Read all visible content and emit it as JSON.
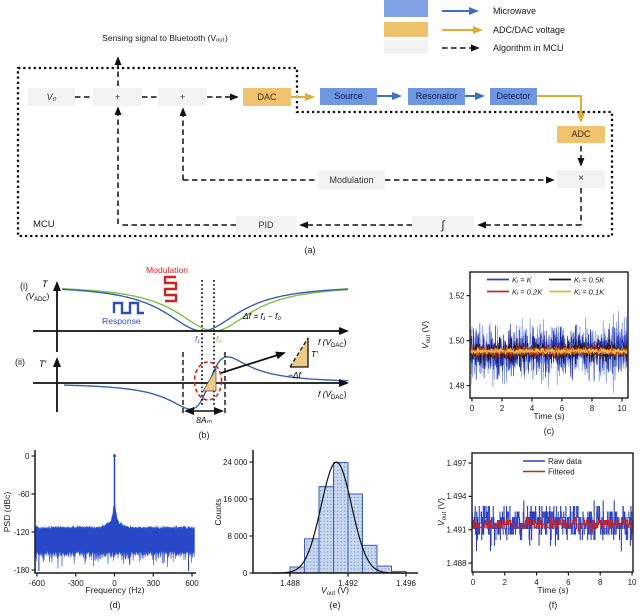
{
  "legend": {
    "items": [
      {
        "label": "Microwave",
        "swatch": "#7ea2e4",
        "arrow": "#3f6ec6",
        "dashed": false
      },
      {
        "label": "ADC/DAC voltage",
        "swatch": "#eec26d",
        "arrow": "#e2ab32",
        "dashed": false
      },
      {
        "label": "Algorithm in MCU",
        "swatch": "#f3f3f3",
        "arrow": "#111111",
        "dashed": true
      }
    ]
  },
  "panel_a": {
    "caption": "(a)",
    "sensing_label": "Sensing signal to Bluetooth (Vₒᵤₜ)",
    "mcu_label": "MCU",
    "blocks": {
      "v0": "V₀",
      "sum1": "+",
      "sum2": "+",
      "dac": "DAC",
      "source": "Source",
      "resonator": "Resonator",
      "detector": "Detector",
      "adc": "ADC",
      "modulation": "Modulation",
      "multiply": "×",
      "pid": "PID",
      "integrator": "∫"
    },
    "colors": {
      "mcu_block": "#f3f3f3",
      "microwave_block": "#6f96e1",
      "converter_block": "#efc36f",
      "microwave_arrow": "#3f6ec6",
      "voltage_arrow": "#e2ab32",
      "algorithm_line": "#111111"
    }
  },
  "panel_b": {
    "caption": "(b)",
    "roman_i": "(i)",
    "roman_ii": "(ii)",
    "t_label": "T",
    "t_prime_label": "T′",
    "vadc_parts": [
      "(V",
      "ADC",
      ")"
    ],
    "f_axis_parts": [
      "f (V",
      "DAC",
      ")"
    ],
    "modulation_label": "Modulation",
    "response_label": "Response",
    "delta_f_label": "Δf = f₁ − f₀",
    "f1_label": "f₁",
    "f0_label": "f₀",
    "triangle_t_label": "T′",
    "triangle_df_label": "−Δf",
    "eight_am_label": "8Aₘ",
    "colors": {
      "modulation": "#cc2420",
      "response": "#2a4db8",
      "f1_curve": "#3a5fae",
      "f0_curve": "#7cc142",
      "ellipse": "#d0251d",
      "triangle_fill": "#eccb86"
    }
  },
  "chart_data": [
    {
      "id": "c",
      "type": "line",
      "xlabel": "Time (s)",
      "ylabel_parts": [
        "V",
        "out",
        " (V)"
      ],
      "caption": "(c)",
      "xlim": [
        -0.13,
        10.4
      ],
      "ylim": [
        1.4745,
        1.5305
      ],
      "xticks": [
        0,
        2,
        4,
        6,
        8,
        10
      ],
      "yticks": [
        1.48,
        1.5,
        1.52
      ],
      "ytick_labels": [
        "1.48",
        "1.50",
        "1.52"
      ],
      "description": "Closed-loop output voltage noise vs time for four integral gains; all traces centered near 1.495 V",
      "series": [
        {
          "name": "Kᵢ = K",
          "legend_color": "#2b43b4",
          "mean": 1.4953,
          "layers": [
            {
              "color": "#6d86e0",
              "amp": 0.0115,
              "seed": 101
            },
            {
              "color": "#1c2ba2",
              "amp": 0.0085,
              "seed": 102
            }
          ]
        },
        {
          "name": "Kᵢ = 0.5K",
          "legend_color": "#1a1a1a",
          "mean": 1.4953,
          "layers": [
            {
              "color": "#151515",
              "amp": 0.0038,
              "seed": 103
            }
          ]
        },
        {
          "name": "Kᵢ = 0.2K",
          "legend_color": "#b03028",
          "mean": 1.4953,
          "layers": [
            {
              "color": "#a32417",
              "amp": 0.0026,
              "seed": 104
            },
            {
              "color": "#d8641c",
              "amp": 0.0017,
              "seed": 105
            }
          ]
        },
        {
          "name": "Kᵢ = 0.1K",
          "legend_color": "#e8b43c",
          "mean": 1.4953,
          "layers": [
            {
              "color": "#f0c24a",
              "amp": 0.0011,
              "seed": 106
            }
          ]
        }
      ]
    },
    {
      "id": "d",
      "type": "psd",
      "xlabel": "Frequency (Hz)",
      "ylabel": "PSD (dBc)",
      "caption": "(d)",
      "xlim": [
        -615,
        623
      ],
      "ylim": [
        -184.7,
        6.3
      ],
      "xticks": [
        -600,
        -300,
        0,
        300,
        600
      ],
      "xtick_labels": [
        "-600",
        "-300",
        "0",
        "300",
        "600"
      ],
      "yticks": [
        0,
        -60,
        -120,
        -180
      ],
      "ytick_labels": [
        "0",
        "-60",
        "-120",
        "-180"
      ],
      "description": "Power spectral density: noise floor near -115 to -160 dBc with carrier spike at 0 Hz reaching ~0 dBc",
      "band": {
        "color": "#2848c8",
        "top_base": -113,
        "bottom_base": -150,
        "skirt_amp": 26,
        "skirt_sigma": 13,
        "skirt2_amp": 9,
        "skirt2_sigma": 50,
        "seed": 31
      },
      "spike": {
        "x": 0,
        "top": 0.6,
        "bottom": -100
      },
      "drops": [
        -585,
        573
      ]
    },
    {
      "id": "e",
      "type": "histogram",
      "xlabel_parts": [
        "V",
        "out",
        " (V)"
      ],
      "ylabel": "Counts",
      "caption": "(e)",
      "xlim": [
        1.48545,
        1.49676
      ],
      "ylim": [
        0,
        26180
      ],
      "xticks": [
        1.488,
        1.492,
        1.496
      ],
      "xtick_labels": [
        "1.488",
        "1.492",
        "1.496"
      ],
      "yticks": [
        0,
        8000,
        16000,
        24000
      ],
      "ytick_labels": [
        "0",
        "8 000",
        "16 000",
        "24 000"
      ],
      "bin_start": 1.488,
      "bin_width": 0.001,
      "values": [
        1300,
        7400,
        18700,
        23900,
        17100,
        6000,
        1500,
        350
      ],
      "bar_fill": "#c9d8ef",
      "bar_dot": "#6b8cc9",
      "bar_edge": "#3a5fae",
      "fit": {
        "mu": 1.4912,
        "sigma": 0.00105,
        "peak": 24000,
        "color": "#101010"
      }
    },
    {
      "id": "f",
      "type": "line",
      "xlabel": "Time (s)",
      "ylabel_parts": [
        "V",
        "out",
        " (V)"
      ],
      "caption": "(f)",
      "xlim": [
        -0.06,
        10.06
      ],
      "ylim": [
        1.4872,
        1.4979
      ],
      "xticks": [
        0,
        2,
        4,
        6,
        8,
        10
      ],
      "yticks": [
        1.488,
        1.491,
        1.494,
        1.497
      ],
      "ytick_labels": [
        "1.488",
        "1.491",
        "1.494",
        "1.497"
      ],
      "description": "Raw quantized output voltage vs time with filtered trace overlaid near 1.4915 V",
      "series": [
        {
          "name": "Raw data",
          "color": "#2c3fbe",
          "mean": 1.4916,
          "quant": 0.0005,
          "spread": 3.0,
          "seed": 21,
          "n": 520,
          "width": 0.8
        },
        {
          "name": "Filtered",
          "color": "#c0252d",
          "mean": 1.4915,
          "quant": 0.0003,
          "spread": 1.4,
          "seed": 22,
          "n": 150,
          "width": 1.5
        }
      ]
    },
    {
      "id": "b",
      "type": "schematic",
      "dip": {
        "f1_x": 202,
        "f0_x": 214,
        "width": 45,
        "depth": 46,
        "axis_y": 331,
        "x_range": [
          62,
          348
        ]
      },
      "deriv": {
        "center_x": 209,
        "width": 26,
        "amp": 68,
        "axis_y": 383,
        "x_range": [
          64,
          348
        ]
      }
    }
  ]
}
